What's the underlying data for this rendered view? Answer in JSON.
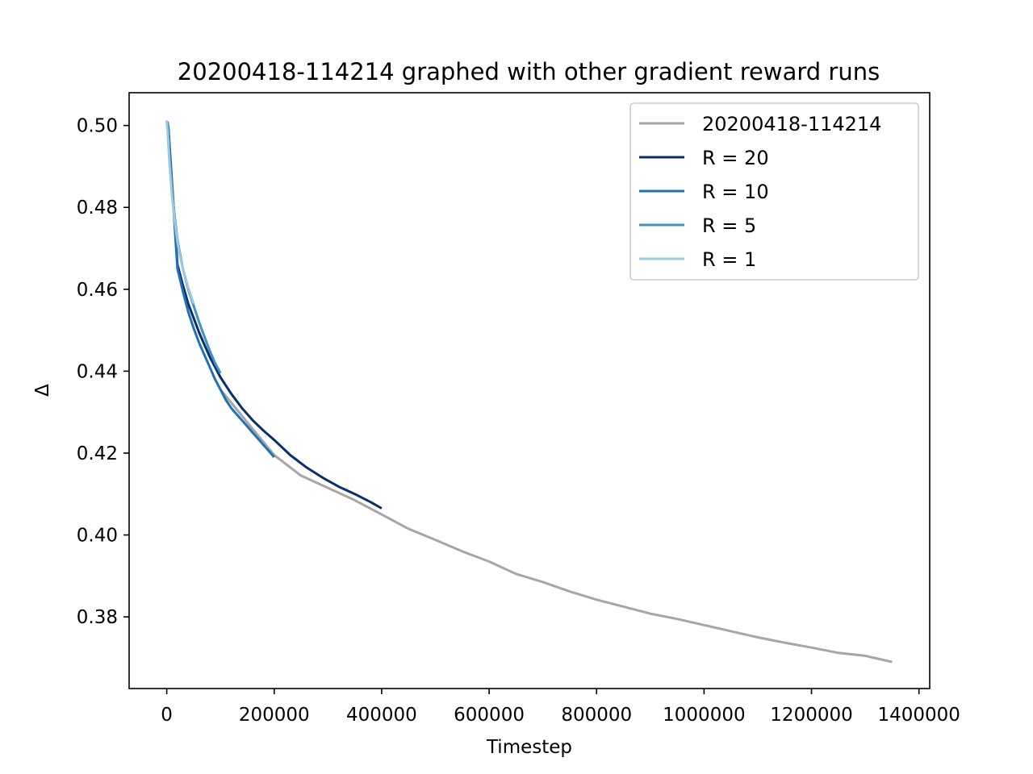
{
  "chart_data": {
    "type": "line",
    "title": "20200418-114214 graphed with other gradient reward runs",
    "xlabel": "Timestep",
    "ylabel": "Δ",
    "xlim": [
      -70000,
      1420000
    ],
    "ylim": [
      0.3625,
      0.508
    ],
    "xticks": [
      0,
      200000,
      400000,
      600000,
      800000,
      1000000,
      1200000,
      1400000
    ],
    "xtick_labels": [
      "0",
      "200000",
      "400000",
      "600000",
      "800000",
      "1000000",
      "1200000",
      "1400000"
    ],
    "yticks": [
      0.38,
      0.4,
      0.42,
      0.44,
      0.46,
      0.48,
      0.5
    ],
    "ytick_labels": [
      "0.38",
      "0.40",
      "0.42",
      "0.44",
      "0.46",
      "0.48",
      "0.50"
    ],
    "grid": false,
    "legend_position": "upper right",
    "series": [
      {
        "name": "20200418-114214",
        "color": "#a6a6a6",
        "x": [
          100000,
          150000,
          200000,
          250000,
          300000,
          350000,
          400000,
          450000,
          500000,
          550000,
          600000,
          650000,
          700000,
          750000,
          800000,
          850000,
          900000,
          950000,
          1000000,
          1050000,
          1100000,
          1150000,
          1200000,
          1250000,
          1300000,
          1350000
        ],
        "y": [
          0.4355,
          0.4275,
          0.4195,
          0.4145,
          0.4115,
          0.4085,
          0.405,
          0.4015,
          0.3988,
          0.396,
          0.3935,
          0.3905,
          0.3885,
          0.3862,
          0.3842,
          0.3825,
          0.3808,
          0.3795,
          0.378,
          0.3765,
          0.375,
          0.3737,
          0.3725,
          0.3712,
          0.3705,
          0.369
        ]
      },
      {
        "name": "R = 20",
        "color": "#08306b",
        "x": [
          0,
          1500,
          3000,
          20000,
          30000,
          40000,
          50000,
          60000,
          70000,
          80000,
          90000,
          100000,
          120000,
          140000,
          160000,
          180000,
          200000,
          230000,
          260000,
          290000,
          320000,
          350000,
          380000,
          400000
        ],
        "y": [
          0.501,
          0.5007,
          0.4995,
          0.466,
          0.461,
          0.4565,
          0.453,
          0.4495,
          0.4465,
          0.4435,
          0.441,
          0.4385,
          0.4345,
          0.431,
          0.428,
          0.4255,
          0.4232,
          0.4195,
          0.4165,
          0.414,
          0.4118,
          0.41,
          0.408,
          0.4065
        ]
      },
      {
        "name": "R = 10",
        "color": "#2171b5",
        "x": [
          0,
          1500,
          3000,
          20000,
          30000,
          40000,
          50000,
          60000,
          70000,
          80000,
          90000,
          100000,
          110000,
          120000,
          130000,
          140000,
          150000,
          160000,
          170000,
          180000,
          190000,
          200000
        ],
        "y": [
          0.501,
          0.5005,
          0.499,
          0.465,
          0.4595,
          0.4545,
          0.4505,
          0.447,
          0.444,
          0.441,
          0.438,
          0.4355,
          0.433,
          0.431,
          0.4295,
          0.428,
          0.4265,
          0.425,
          0.4235,
          0.422,
          0.4205,
          0.419
        ]
      },
      {
        "name": "R = 5",
        "color": "#4292c6",
        "x": [
          0,
          2000,
          5000,
          10000,
          15000,
          20000,
          30000,
          40000,
          50000,
          60000,
          70000,
          80000,
          90000,
          100000
        ],
        "y": [
          0.501,
          0.499,
          0.492,
          0.4835,
          0.4775,
          0.472,
          0.465,
          0.46,
          0.456,
          0.452,
          0.4485,
          0.445,
          0.442,
          0.4395
        ]
      },
      {
        "name": "R = 1",
        "color": "#9ecae1",
        "x": [
          0,
          2000,
          5000,
          10000,
          15000,
          20000,
          25000,
          30000,
          40000,
          50000
        ],
        "y": [
          0.5012,
          0.498,
          0.491,
          0.4825,
          0.4765,
          0.4715,
          0.468,
          0.465,
          0.4605,
          0.4565
        ]
      }
    ]
  }
}
